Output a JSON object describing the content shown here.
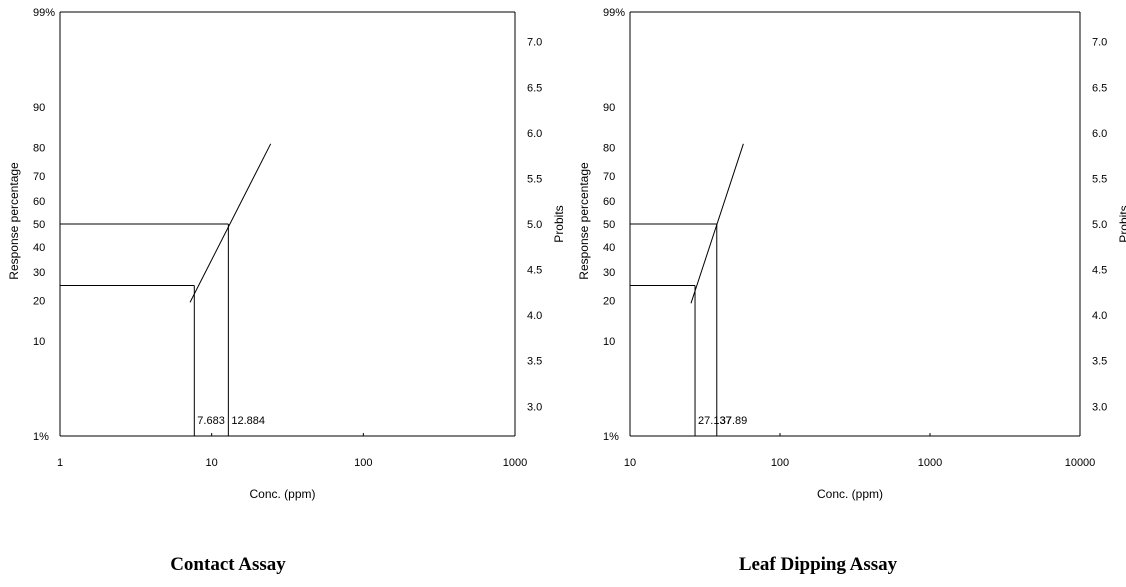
{
  "chart_data": [
    {
      "type": "line",
      "caption": "Contact Assay",
      "xlabel": "Conc. (ppm)",
      "ylabel": "Response percentage",
      "y2label": "Probits",
      "x_scale": "log",
      "xlim": [
        1,
        1000
      ],
      "x_ticks": [
        1,
        10,
        100,
        1000
      ],
      "x_tick_labels": [
        "1",
        "10",
        "100",
        "1000"
      ],
      "y_scale": "probit",
      "y_ticks": [
        1,
        10,
        20,
        30,
        40,
        50,
        60,
        70,
        80,
        90,
        99
      ],
      "y_tick_labels": [
        "1%",
        "10",
        "20",
        "30",
        "40",
        "50",
        "60",
        "70",
        "80",
        "90",
        "99%"
      ],
      "y2_ticks": [
        3.0,
        3.5,
        4.0,
        4.5,
        5.0,
        5.5,
        6.0,
        6.5,
        7.0
      ],
      "y2_tick_labels": [
        "3.0",
        "3.5",
        "4.0",
        "4.5",
        "5.0",
        "5.5",
        "6.0",
        "6.5",
        "7.0"
      ],
      "series": [
        {
          "x": [
            7.2,
            24.5
          ],
          "y": [
            4.14,
            5.88
          ]
        }
      ],
      "reference_lines": [
        {
          "x": 7.683,
          "y": 25
        },
        {
          "x": 12.884,
          "y": 50
        }
      ],
      "annotations": [
        "7.683",
        "12.884"
      ],
      "grid": false
    },
    {
      "type": "line",
      "caption": "Leaf Dipping Assay",
      "xlabel": "Conc. (ppm)",
      "ylabel": "Response percentage",
      "y2label": "Probits",
      "x_scale": "log",
      "xlim": [
        10,
        10000
      ],
      "x_ticks": [
        10,
        100,
        1000,
        10000
      ],
      "x_tick_labels": [
        "10",
        "100",
        "1000",
        "10000"
      ],
      "y_scale": "probit",
      "y_ticks": [
        1,
        10,
        20,
        30,
        40,
        50,
        60,
        70,
        80,
        90,
        99
      ],
      "y_tick_labels": [
        "1%",
        "10",
        "20",
        "30",
        "40",
        "50",
        "60",
        "70",
        "80",
        "90",
        "99%"
      ],
      "y2_ticks": [
        3.0,
        3.5,
        4.0,
        4.5,
        5.0,
        5.5,
        6.0,
        6.5,
        7.0
      ],
      "y2_tick_labels": [
        "3.0",
        "3.5",
        "4.0",
        "4.5",
        "5.0",
        "5.5",
        "6.0",
        "6.5",
        "7.0"
      ],
      "series": [
        {
          "x": [
            25.5,
            57.0
          ],
          "y": [
            4.13,
            5.88
          ]
        }
      ],
      "reference_lines": [
        {
          "x": 27.137,
          "y": 25
        },
        {
          "x": 37.89,
          "y": 50
        }
      ],
      "annotations": [
        "27.137",
        "37.89"
      ],
      "grid": false
    }
  ]
}
